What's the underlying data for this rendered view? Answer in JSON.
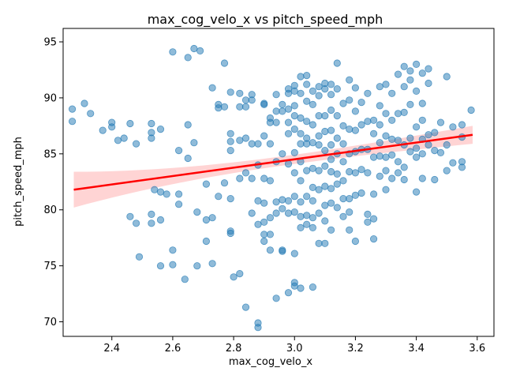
{
  "chart_data": {
    "type": "scatter",
    "title": "max_cog_velo_x vs pitch_speed_mph",
    "xlabel": "max_cog_velo_x",
    "ylabel": "pitch_speed_mph",
    "xlim": [
      2.24,
      3.655
    ],
    "ylim": [
      68.7,
      96.2
    ],
    "xticks": [
      2.4,
      2.6,
      2.8,
      3.0,
      3.2,
      3.4,
      3.6
    ],
    "xtick_labels": [
      "2.4",
      "2.6",
      "2.8",
      "3.0",
      "3.2",
      "3.4",
      "3.6"
    ],
    "yticks": [
      70,
      75,
      80,
      85,
      90,
      95
    ],
    "ytick_labels": [
      "70",
      "75",
      "80",
      "85",
      "90",
      "95"
    ],
    "grid": false,
    "point_color": "#1f77b4",
    "line_color": "#ff0000",
    "band_color": "#ffcccc",
    "regression": {
      "x": [
        2.275,
        3.585
      ],
      "y": [
        81.8,
        86.7
      ],
      "ci_lower": [
        80.2,
        85.8
      ],
      "ci_upper": [
        83.4,
        87.5
      ]
    },
    "points": [
      [
        2.27,
        89.0
      ],
      [
        2.27,
        87.9
      ],
      [
        2.31,
        89.5
      ],
      [
        2.33,
        88.6
      ],
      [
        2.37,
        87.1
      ],
      [
        2.4,
        87.8
      ],
      [
        2.4,
        87.4
      ],
      [
        2.42,
        86.2
      ],
      [
        2.44,
        86.4
      ],
      [
        2.46,
        87.7
      ],
      [
        2.48,
        85.9
      ],
      [
        2.46,
        79.4
      ],
      [
        2.48,
        78.8
      ],
      [
        2.49,
        75.8
      ],
      [
        2.53,
        86.4
      ],
      [
        2.53,
        86.9
      ],
      [
        2.53,
        87.7
      ],
      [
        2.56,
        87.2
      ],
      [
        2.53,
        79.6
      ],
      [
        2.53,
        78.8
      ],
      [
        2.56,
        79.1
      ],
      [
        2.54,
        81.8
      ],
      [
        2.56,
        81.6
      ],
      [
        2.58,
        81.4
      ],
      [
        2.56,
        75.0
      ],
      [
        2.6,
        75.1
      ],
      [
        2.6,
        76.4
      ],
      [
        2.62,
        81.4
      ],
      [
        2.62,
        80.5
      ],
      [
        2.64,
        73.8
      ],
      [
        2.6,
        94.1
      ],
      [
        2.65,
        93.6
      ],
      [
        2.67,
        94.4
      ],
      [
        2.69,
        94.2
      ],
      [
        2.62,
        85.3
      ],
      [
        2.65,
        84.6
      ],
      [
        2.65,
        87.6
      ],
      [
        2.67,
        86.0
      ],
      [
        2.68,
        79.8
      ],
      [
        2.68,
        75.0
      ],
      [
        2.71,
        82.3
      ],
      [
        2.71,
        79.1
      ],
      [
        2.71,
        77.2
      ],
      [
        2.73,
        79.3
      ],
      [
        2.73,
        75.2
      ],
      [
        2.73,
        90.9
      ],
      [
        2.75,
        89.4
      ],
      [
        2.75,
        89.1
      ],
      [
        2.77,
        89.2
      ],
      [
        2.77,
        93.1
      ],
      [
        2.75,
        81.2
      ],
      [
        2.77,
        82.4
      ],
      [
        2.79,
        81.0
      ],
      [
        2.79,
        78.1
      ],
      [
        2.79,
        77.9
      ],
      [
        2.8,
        74.0
      ],
      [
        2.82,
        74.3
      ],
      [
        2.79,
        90.5
      ],
      [
        2.79,
        86.8
      ],
      [
        2.79,
        86.1
      ],
      [
        2.79,
        85.3
      ],
      [
        2.82,
        90.4
      ],
      [
        2.82,
        89.2
      ],
      [
        2.82,
        86.2
      ],
      [
        2.82,
        82.8
      ],
      [
        2.84,
        89.2
      ],
      [
        2.84,
        89.8
      ],
      [
        2.84,
        86.4
      ],
      [
        2.84,
        83.3
      ],
      [
        2.84,
        71.3
      ],
      [
        2.86,
        90.3
      ],
      [
        2.86,
        89.8
      ],
      [
        2.86,
        85.9
      ],
      [
        2.86,
        82.8
      ],
      [
        2.86,
        79.7
      ],
      [
        2.88,
        85.9
      ],
      [
        2.88,
        84.0
      ],
      [
        2.88,
        80.8
      ],
      [
        2.88,
        78.7
      ],
      [
        2.88,
        69.9
      ],
      [
        2.88,
        69.5
      ],
      [
        2.9,
        89.5
      ],
      [
        2.9,
        89.4
      ],
      [
        2.9,
        86.6
      ],
      [
        2.9,
        82.8
      ],
      [
        2.9,
        80.6
      ],
      [
        2.9,
        77.8
      ],
      [
        2.9,
        77.2
      ],
      [
        2.9,
        78.9
      ],
      [
        2.92,
        88.2
      ],
      [
        2.92,
        87.8
      ],
      [
        2.92,
        85.9
      ],
      [
        2.92,
        82.6
      ],
      [
        2.92,
        79.3
      ],
      [
        2.92,
        77.8
      ],
      [
        2.92,
        76.4
      ],
      [
        2.94,
        90.3
      ],
      [
        2.94,
        88.8
      ],
      [
        2.94,
        87.8
      ],
      [
        2.94,
        84.3
      ],
      [
        2.94,
        80.7
      ],
      [
        2.94,
        79.7
      ],
      [
        2.94,
        72.1
      ],
      [
        2.96,
        89.4
      ],
      [
        2.96,
        88.8
      ],
      [
        2.96,
        85.0
      ],
      [
        2.96,
        80.9
      ],
      [
        2.96,
        80.1
      ],
      [
        2.96,
        76.4
      ],
      [
        2.96,
        76.3
      ],
      [
        2.98,
        90.8
      ],
      [
        2.98,
        90.4
      ],
      [
        2.98,
        89.0
      ],
      [
        2.98,
        87.8
      ],
      [
        2.98,
        86.8
      ],
      [
        2.98,
        84.1
      ],
      [
        2.98,
        80.8
      ],
      [
        2.98,
        79.7
      ],
      [
        2.98,
        72.6
      ],
      [
        3.0,
        91.1
      ],
      [
        3.0,
        90.6
      ],
      [
        3.0,
        89.3
      ],
      [
        3.0,
        88.4
      ],
      [
        3.0,
        87.2
      ],
      [
        3.0,
        85.1
      ],
      [
        3.0,
        83.3
      ],
      [
        3.0,
        81.2
      ],
      [
        3.0,
        79.8
      ],
      [
        3.0,
        76.1
      ],
      [
        3.0,
        73.5
      ],
      [
        3.0,
        73.2
      ],
      [
        3.02,
        91.9
      ],
      [
        3.02,
        90.4
      ],
      [
        3.02,
        88.2
      ],
      [
        3.02,
        86.8
      ],
      [
        3.02,
        85.9
      ],
      [
        3.02,
        84.3
      ],
      [
        3.02,
        82.6
      ],
      [
        3.02,
        80.7
      ],
      [
        3.02,
        79.4
      ],
      [
        3.02,
        78.4
      ],
      [
        3.02,
        73.0
      ],
      [
        3.04,
        92.0
      ],
      [
        3.04,
        91.2
      ],
      [
        3.04,
        89.7
      ],
      [
        3.04,
        87.9
      ],
      [
        3.04,
        86.4
      ],
      [
        3.04,
        85.9
      ],
      [
        3.04,
        83.5
      ],
      [
        3.04,
        81.2
      ],
      [
        3.04,
        79.5
      ],
      [
        3.04,
        78.7
      ],
      [
        3.06,
        90.6
      ],
      [
        3.06,
        89.4
      ],
      [
        3.06,
        87.6
      ],
      [
        3.06,
        86.0
      ],
      [
        3.06,
        83.7
      ],
      [
        3.06,
        82.0
      ],
      [
        3.06,
        80.8
      ],
      [
        3.06,
        79.3
      ],
      [
        3.06,
        78.4
      ],
      [
        3.06,
        73.1
      ],
      [
        3.08,
        91.0
      ],
      [
        3.08,
        90.2
      ],
      [
        3.08,
        88.4
      ],
      [
        3.08,
        86.6
      ],
      [
        3.08,
        85.8
      ],
      [
        3.08,
        83.5
      ],
      [
        3.08,
        81.8
      ],
      [
        3.08,
        79.7
      ],
      [
        3.08,
        77.0
      ],
      [
        3.1,
        91.3
      ],
      [
        3.1,
        90.8
      ],
      [
        3.1,
        88.4
      ],
      [
        3.1,
        87.0
      ],
      [
        3.1,
        85.3
      ],
      [
        3.1,
        83.9
      ],
      [
        3.1,
        82.1
      ],
      [
        3.1,
        80.4
      ],
      [
        3.1,
        79.0
      ],
      [
        3.1,
        77.0
      ],
      [
        3.12,
        91.2
      ],
      [
        3.12,
        90.3
      ],
      [
        3.12,
        88.9
      ],
      [
        3.12,
        87.1
      ],
      [
        3.12,
        85.8
      ],
      [
        3.12,
        84.5
      ],
      [
        3.12,
        83.4
      ],
      [
        3.12,
        81.9
      ],
      [
        3.12,
        80.6
      ],
      [
        3.12,
        78.2
      ],
      [
        3.14,
        93.1
      ],
      [
        3.14,
        90.8
      ],
      [
        3.14,
        88.4
      ],
      [
        3.14,
        86.4
      ],
      [
        3.14,
        85.0
      ],
      [
        3.14,
        83.2
      ],
      [
        3.14,
        82.3
      ],
      [
        3.14,
        80.2
      ],
      [
        3.16,
        89.5
      ],
      [
        3.16,
        87.5
      ],
      [
        3.16,
        85.9
      ],
      [
        3.16,
        84.3
      ],
      [
        3.16,
        82.6
      ],
      [
        3.16,
        81.0
      ],
      [
        3.16,
        79.4
      ],
      [
        3.18,
        91.6
      ],
      [
        3.18,
        89.8
      ],
      [
        3.18,
        87.2
      ],
      [
        3.18,
        85.0
      ],
      [
        3.18,
        83.4
      ],
      [
        3.18,
        81.0
      ],
      [
        3.18,
        79.8
      ],
      [
        3.18,
        78.2
      ],
      [
        3.2,
        90.9
      ],
      [
        3.2,
        88.8
      ],
      [
        3.2,
        87.1
      ],
      [
        3.2,
        85.2
      ],
      [
        3.2,
        83.3
      ],
      [
        3.2,
        81.3
      ],
      [
        3.2,
        77.2
      ],
      [
        3.22,
        89.6
      ],
      [
        3.22,
        87.6
      ],
      [
        3.22,
        85.4
      ],
      [
        3.22,
        83.6
      ],
      [
        3.22,
        81.5
      ],
      [
        3.24,
        90.4
      ],
      [
        3.24,
        87.9
      ],
      [
        3.24,
        85.4
      ],
      [
        3.24,
        83.3
      ],
      [
        3.24,
        79.6
      ],
      [
        3.24,
        78.9
      ],
      [
        3.26,
        88.0
      ],
      [
        3.26,
        86.8
      ],
      [
        3.26,
        84.7
      ],
      [
        3.26,
        81.4
      ],
      [
        3.26,
        77.4
      ],
      [
        3.26,
        79.2
      ],
      [
        3.28,
        91.0
      ],
      [
        3.28,
        89.3
      ],
      [
        3.28,
        87.6
      ],
      [
        3.28,
        86.0
      ],
      [
        3.28,
        84.8
      ],
      [
        3.28,
        83.0
      ],
      [
        3.3,
        91.2
      ],
      [
        3.3,
        88.6
      ],
      [
        3.3,
        86.6
      ],
      [
        3.3,
        84.7
      ],
      [
        3.3,
        83.5
      ],
      [
        3.3,
        81.8
      ],
      [
        3.32,
        90.4
      ],
      [
        3.32,
        88.0
      ],
      [
        3.32,
        86.3
      ],
      [
        3.32,
        84.9
      ],
      [
        3.32,
        82.8
      ],
      [
        3.34,
        92.1
      ],
      [
        3.34,
        88.6
      ],
      [
        3.34,
        86.2
      ],
      [
        3.34,
        84.3
      ],
      [
        3.34,
        83.3
      ],
      [
        3.36,
        92.8
      ],
      [
        3.36,
        91.0
      ],
      [
        3.36,
        88.7
      ],
      [
        3.36,
        85.8
      ],
      [
        3.36,
        83.8
      ],
      [
        3.36,
        82.7
      ],
      [
        3.38,
        92.4
      ],
      [
        3.38,
        91.6
      ],
      [
        3.38,
        89.4
      ],
      [
        3.38,
        86.4
      ],
      [
        3.38,
        85.2
      ],
      [
        3.4,
        93.0
      ],
      [
        3.4,
        90.6
      ],
      [
        3.4,
        87.4
      ],
      [
        3.4,
        85.5
      ],
      [
        3.4,
        84.7
      ],
      [
        3.4,
        81.6
      ],
      [
        3.42,
        92.2
      ],
      [
        3.42,
        89.5
      ],
      [
        3.42,
        88.0
      ],
      [
        3.42,
        86.3
      ],
      [
        3.42,
        85.0
      ],
      [
        3.42,
        82.8
      ],
      [
        3.44,
        92.6
      ],
      [
        3.44,
        91.3
      ],
      [
        3.44,
        86.7
      ],
      [
        3.44,
        85.8
      ],
      [
        3.46,
        86.9
      ],
      [
        3.46,
        85.3
      ],
      [
        3.46,
        82.7
      ],
      [
        3.48,
        87.8
      ],
      [
        3.48,
        85.1
      ],
      [
        3.5,
        91.9
      ],
      [
        3.5,
        85.8
      ],
      [
        3.5,
        83.5
      ],
      [
        3.52,
        87.4
      ],
      [
        3.52,
        84.2
      ],
      [
        3.55,
        87.6
      ],
      [
        3.55,
        86.5
      ],
      [
        3.55,
        84.3
      ],
      [
        3.55,
        83.8
      ],
      [
        3.58,
        88.9
      ]
    ]
  }
}
